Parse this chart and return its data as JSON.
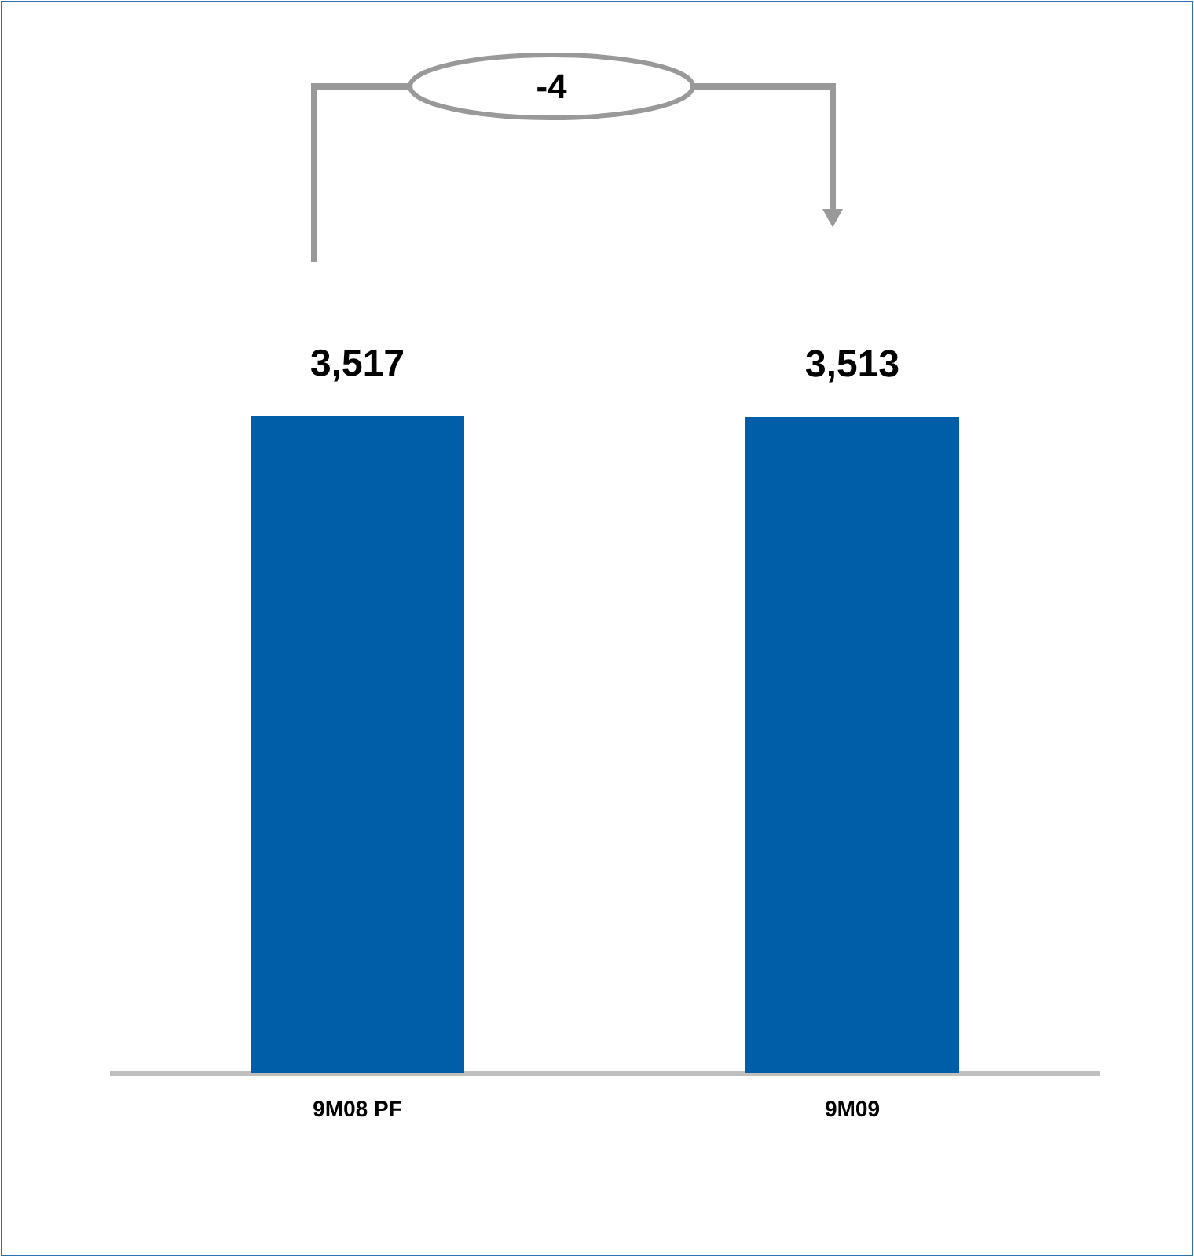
{
  "chart_data": {
    "type": "bar",
    "categories": [
      "9M08 PF",
      "9M09"
    ],
    "values": [
      3517,
      3513
    ],
    "value_labels": [
      "3,517",
      "3,513"
    ],
    "color": "#005ea8",
    "annotations": [
      "-4"
    ],
    "tick_labels": "x"
  }
}
